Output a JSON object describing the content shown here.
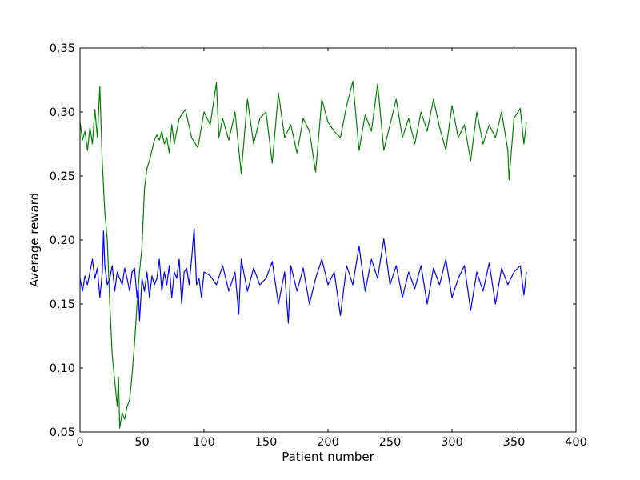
{
  "chart_data": {
    "type": "line",
    "title": "",
    "xlabel": "Patient number",
    "ylabel": "Average reward",
    "xlim": [
      0,
      400
    ],
    "ylim": [
      0.05,
      0.35
    ],
    "xticks": [
      0,
      50,
      100,
      150,
      200,
      250,
      300,
      350,
      400
    ],
    "yticks": [
      0.05,
      0.1,
      0.15,
      0.2,
      0.25,
      0.3,
      0.35
    ],
    "ytick_labels": [
      "0.05",
      "0.10",
      "0.15",
      "0.20",
      "0.25",
      "0.30",
      "0.35"
    ],
    "grid": false,
    "series": [
      {
        "color": "#008000",
        "x": [
          0,
          2,
          4,
          6,
          8,
          10,
          12,
          14,
          16,
          17,
          18,
          20,
          22,
          24,
          26,
          28,
          30,
          31,
          32,
          34,
          36,
          38,
          40,
          42,
          44,
          46,
          48,
          50,
          52,
          54,
          56,
          58,
          60,
          62,
          64,
          66,
          68,
          70,
          72,
          74,
          76,
          78,
          80,
          85,
          90,
          95,
          100,
          105,
          110,
          112,
          115,
          120,
          125,
          130,
          135,
          140,
          145,
          150,
          155,
          160,
          165,
          170,
          175,
          180,
          185,
          190,
          195,
          200,
          205,
          210,
          215,
          220,
          225,
          230,
          235,
          240,
          245,
          250,
          255,
          260,
          265,
          270,
          275,
          280,
          285,
          290,
          295,
          300,
          305,
          310,
          315,
          320,
          325,
          330,
          335,
          340,
          345,
          346,
          350,
          355,
          358,
          360
        ],
        "y": [
          0.292,
          0.278,
          0.285,
          0.27,
          0.288,
          0.275,
          0.302,
          0.28,
          0.32,
          0.29,
          0.26,
          0.222,
          0.2,
          0.15,
          0.11,
          0.09,
          0.07,
          0.093,
          0.053,
          0.065,
          0.06,
          0.07,
          0.075,
          0.095,
          0.12,
          0.15,
          0.175,
          0.195,
          0.24,
          0.256,
          0.262,
          0.27,
          0.278,
          0.282,
          0.278,
          0.285,
          0.275,
          0.28,
          0.268,
          0.29,
          0.275,
          0.285,
          0.295,
          0.302,
          0.28,
          0.272,
          0.3,
          0.29,
          0.323,
          0.28,
          0.295,
          0.278,
          0.3,
          0.252,
          0.31,
          0.275,
          0.295,
          0.3,
          0.26,
          0.315,
          0.28,
          0.29,
          0.268,
          0.295,
          0.285,
          0.253,
          0.31,
          0.292,
          0.285,
          0.28,
          0.305,
          0.324,
          0.27,
          0.298,
          0.285,
          0.322,
          0.27,
          0.29,
          0.31,
          0.28,
          0.295,
          0.275,
          0.3,
          0.285,
          0.31,
          0.288,
          0.27,
          0.305,
          0.28,
          0.29,
          0.262,
          0.3,
          0.275,
          0.29,
          0.28,
          0.3,
          0.27,
          0.247,
          0.295,
          0.303,
          0.275,
          0.292
        ]
      },
      {
        "color": "#0000ff",
        "x": [
          0,
          2,
          4,
          6,
          8,
          10,
          12,
          14,
          16,
          18,
          19,
          20,
          22,
          24,
          26,
          28,
          30,
          32,
          34,
          36,
          38,
          40,
          42,
          44,
          46,
          47,
          48,
          50,
          52,
          54,
          56,
          58,
          60,
          62,
          64,
          66,
          68,
          70,
          72,
          74,
          76,
          78,
          80,
          82,
          84,
          86,
          88,
          90,
          92,
          94,
          96,
          98,
          100,
          105,
          110,
          115,
          120,
          125,
          128,
          130,
          135,
          140,
          145,
          150,
          155,
          160,
          165,
          168,
          170,
          175,
          180,
          185,
          190,
          195,
          200,
          205,
          210,
          215,
          220,
          225,
          230,
          235,
          240,
          245,
          250,
          255,
          260,
          265,
          270,
          275,
          280,
          285,
          290,
          295,
          300,
          305,
          310,
          315,
          320,
          325,
          330,
          335,
          340,
          345,
          350,
          355,
          358,
          360
        ],
        "y": [
          0.17,
          0.16,
          0.172,
          0.165,
          0.175,
          0.185,
          0.17,
          0.178,
          0.155,
          0.175,
          0.207,
          0.18,
          0.165,
          0.17,
          0.18,
          0.16,
          0.175,
          0.17,
          0.165,
          0.178,
          0.17,
          0.16,
          0.175,
          0.178,
          0.155,
          0.163,
          0.137,
          0.17,
          0.16,
          0.175,
          0.155,
          0.172,
          0.165,
          0.17,
          0.185,
          0.16,
          0.175,
          0.165,
          0.18,
          0.155,
          0.175,
          0.17,
          0.185,
          0.15,
          0.175,
          0.178,
          0.165,
          0.185,
          0.209,
          0.165,
          0.17,
          0.155,
          0.175,
          0.172,
          0.165,
          0.18,
          0.16,
          0.175,
          0.142,
          0.185,
          0.16,
          0.178,
          0.165,
          0.17,
          0.183,
          0.15,
          0.175,
          0.135,
          0.18,
          0.16,
          0.178,
          0.15,
          0.17,
          0.185,
          0.165,
          0.175,
          0.141,
          0.18,
          0.165,
          0.195,
          0.16,
          0.185,
          0.17,
          0.201,
          0.165,
          0.18,
          0.155,
          0.175,
          0.162,
          0.18,
          0.15,
          0.178,
          0.165,
          0.185,
          0.155,
          0.17,
          0.18,
          0.145,
          0.175,
          0.16,
          0.182,
          0.15,
          0.178,
          0.165,
          0.175,
          0.18,
          0.157,
          0.175
        ]
      }
    ]
  }
}
